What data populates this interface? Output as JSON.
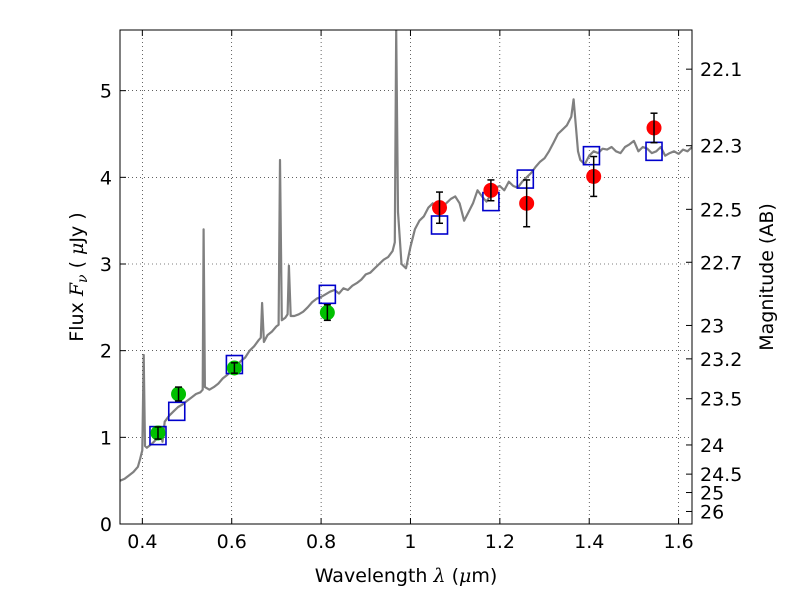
{
  "chart_data": {
    "type": "scatter",
    "xlabel": {
      "prefix": "Wavelength  ",
      "symbol": "λ",
      "suffix": " (",
      "unit_symbol": "μ",
      "unit": "m)"
    },
    "ylabel": {
      "prefix": "Flux  ",
      "symbol": "F",
      "subscript": "ν",
      "suffix": "  (  ",
      "unit_symbol": "μ",
      "unit": "Jy  )"
    },
    "y2label": "Magnitude (AB)",
    "xlim": [
      0.35,
      1.63
    ],
    "ylim": [
      0,
      5.7
    ],
    "grid": true,
    "x_ticks": [
      {
        "value": 0.4,
        "label": "0.4"
      },
      {
        "value": 0.6,
        "label": "0.6"
      },
      {
        "value": 0.8,
        "label": "0.8"
      },
      {
        "value": 1.0,
        "label": "1"
      },
      {
        "value": 1.2,
        "label": "1.2"
      },
      {
        "value": 1.4,
        "label": "1.4"
      },
      {
        "value": 1.6,
        "label": "1.6"
      }
    ],
    "y_ticks": [
      {
        "value": 0,
        "label": "0"
      },
      {
        "value": 1,
        "label": "1"
      },
      {
        "value": 2,
        "label": "2"
      },
      {
        "value": 3,
        "label": "3"
      },
      {
        "value": 4,
        "label": "4"
      },
      {
        "value": 5,
        "label": "5"
      }
    ],
    "magnitude_ticks": [
      {
        "value": 22.1,
        "label": "22.1"
      },
      {
        "value": 22.3,
        "label": "22.3"
      },
      {
        "value": 22.5,
        "label": "22.5"
      },
      {
        "value": 22.7,
        "label": "22.7"
      },
      {
        "value": 23.0,
        "label": "23"
      },
      {
        "value": 23.2,
        "label": "23.2"
      },
      {
        "value": 23.5,
        "label": "23.5"
      },
      {
        "value": 24.0,
        "label": "24"
      },
      {
        "value": 24.5,
        "label": "24.5"
      },
      {
        "value": 25.0,
        "label": "25"
      },
      {
        "value": 26.0,
        "label": "26"
      }
    ],
    "magnitude_zero_point": 23.9,
    "series": [
      {
        "name": "model-spectrum",
        "kind": "line",
        "color": "#808080",
        "points": [
          [
            0.35,
            0.5
          ],
          [
            0.36,
            0.52
          ],
          [
            0.37,
            0.56
          ],
          [
            0.38,
            0.6
          ],
          [
            0.39,
            0.66
          ],
          [
            0.395,
            0.75
          ],
          [
            0.4,
            0.85
          ],
          [
            0.403,
            1.95
          ],
          [
            0.406,
            0.9
          ],
          [
            0.41,
            0.88
          ],
          [
            0.42,
            0.92
          ],
          [
            0.43,
            0.97
          ],
          [
            0.435,
            1.0
          ],
          [
            0.44,
            1.1
          ],
          [
            0.445,
            0.95
          ],
          [
            0.45,
            1.18
          ],
          [
            0.46,
            1.25
          ],
          [
            0.47,
            1.3
          ],
          [
            0.48,
            1.35
          ],
          [
            0.49,
            1.38
          ],
          [
            0.5,
            1.42
          ],
          [
            0.51,
            1.46
          ],
          [
            0.52,
            1.5
          ],
          [
            0.53,
            1.52
          ],
          [
            0.535,
            1.55
          ],
          [
            0.537,
            3.4
          ],
          [
            0.54,
            1.58
          ],
          [
            0.55,
            1.55
          ],
          [
            0.56,
            1.58
          ],
          [
            0.57,
            1.62
          ],
          [
            0.58,
            1.68
          ],
          [
            0.59,
            1.72
          ],
          [
            0.6,
            1.78
          ],
          [
            0.61,
            1.82
          ],
          [
            0.62,
            1.88
          ],
          [
            0.63,
            1.92
          ],
          [
            0.64,
            2.0
          ],
          [
            0.65,
            2.05
          ],
          [
            0.66,
            2.12
          ],
          [
            0.665,
            2.15
          ],
          [
            0.668,
            2.55
          ],
          [
            0.672,
            2.1
          ],
          [
            0.68,
            2.18
          ],
          [
            0.69,
            2.22
          ],
          [
            0.7,
            2.28
          ],
          [
            0.705,
            2.3
          ],
          [
            0.708,
            4.2
          ],
          [
            0.712,
            2.35
          ],
          [
            0.72,
            2.38
          ],
          [
            0.725,
            2.42
          ],
          [
            0.728,
            2.98
          ],
          [
            0.732,
            2.4
          ],
          [
            0.74,
            2.4
          ],
          [
            0.75,
            2.42
          ],
          [
            0.76,
            2.45
          ],
          [
            0.77,
            2.5
          ],
          [
            0.78,
            2.56
          ],
          [
            0.79,
            2.6
          ],
          [
            0.8,
            2.62
          ],
          [
            0.81,
            2.65
          ],
          [
            0.82,
            2.68
          ],
          [
            0.83,
            2.7
          ],
          [
            0.84,
            2.66
          ],
          [
            0.85,
            2.72
          ],
          [
            0.86,
            2.7
          ],
          [
            0.87,
            2.75
          ],
          [
            0.88,
            2.78
          ],
          [
            0.89,
            2.82
          ],
          [
            0.9,
            2.88
          ],
          [
            0.91,
            2.9
          ],
          [
            0.92,
            2.95
          ],
          [
            0.93,
            3.0
          ],
          [
            0.94,
            3.05
          ],
          [
            0.95,
            3.08
          ],
          [
            0.96,
            3.15
          ],
          [
            0.965,
            3.25
          ],
          [
            0.968,
            5.7
          ],
          [
            0.972,
            3.6
          ],
          [
            0.98,
            3.0
          ],
          [
            0.99,
            2.95
          ],
          [
            1.0,
            3.2
          ],
          [
            1.01,
            3.4
          ],
          [
            1.02,
            3.5
          ],
          [
            1.03,
            3.55
          ],
          [
            1.04,
            3.65
          ],
          [
            1.05,
            3.7
          ],
          [
            1.06,
            3.62
          ],
          [
            1.07,
            3.65
          ],
          [
            1.08,
            3.7
          ],
          [
            1.09,
            3.75
          ],
          [
            1.1,
            3.78
          ],
          [
            1.11,
            3.7
          ],
          [
            1.12,
            3.5
          ],
          [
            1.13,
            3.6
          ],
          [
            1.14,
            3.7
          ],
          [
            1.15,
            3.85
          ],
          [
            1.16,
            3.78
          ],
          [
            1.17,
            3.72
          ],
          [
            1.18,
            3.8
          ],
          [
            1.19,
            3.88
          ],
          [
            1.2,
            3.9
          ],
          [
            1.21,
            3.85
          ],
          [
            1.22,
            3.95
          ],
          [
            1.23,
            3.9
          ],
          [
            1.24,
            3.88
          ],
          [
            1.25,
            3.95
          ],
          [
            1.26,
            4.0
          ],
          [
            1.27,
            4.05
          ],
          [
            1.28,
            4.12
          ],
          [
            1.29,
            4.18
          ],
          [
            1.3,
            4.22
          ],
          [
            1.31,
            4.3
          ],
          [
            1.32,
            4.4
          ],
          [
            1.33,
            4.5
          ],
          [
            1.34,
            4.55
          ],
          [
            1.35,
            4.6
          ],
          [
            1.36,
            4.7
          ],
          [
            1.365,
            4.9
          ],
          [
            1.37,
            4.6
          ],
          [
            1.375,
            4.3
          ],
          [
            1.38,
            4.2
          ],
          [
            1.39,
            4.15
          ],
          [
            1.4,
            4.25
          ],
          [
            1.41,
            4.3
          ],
          [
            1.42,
            4.28
          ],
          [
            1.43,
            4.33
          ],
          [
            1.44,
            4.32
          ],
          [
            1.45,
            4.35
          ],
          [
            1.46,
            4.3
          ],
          [
            1.47,
            4.28
          ],
          [
            1.48,
            4.35
          ],
          [
            1.49,
            4.38
          ],
          [
            1.5,
            4.42
          ],
          [
            1.51,
            4.3
          ],
          [
            1.52,
            4.35
          ],
          [
            1.53,
            4.33
          ],
          [
            1.54,
            4.28
          ],
          [
            1.55,
            4.3
          ],
          [
            1.56,
            4.35
          ],
          [
            1.57,
            4.25
          ],
          [
            1.58,
            4.28
          ],
          [
            1.59,
            4.3
          ],
          [
            1.6,
            4.27
          ],
          [
            1.61,
            4.32
          ],
          [
            1.62,
            4.3
          ],
          [
            1.63,
            4.35
          ]
        ]
      },
      {
        "name": "model-photometry",
        "kind": "open-square",
        "color": "#0000cc",
        "points": [
          [
            0.435,
            1.02
          ],
          [
            0.477,
            1.3
          ],
          [
            0.606,
            1.84
          ],
          [
            0.814,
            2.65
          ],
          [
            1.065,
            3.45
          ],
          [
            1.18,
            3.72
          ],
          [
            1.257,
            3.98
          ],
          [
            1.405,
            4.25
          ],
          [
            1.545,
            4.3
          ]
        ]
      },
      {
        "name": "optical-photometry",
        "kind": "filled-circle",
        "color": "#00c000",
        "points": [
          {
            "x": 0.435,
            "y": 1.05,
            "err": 0.07
          },
          {
            "x": 0.481,
            "y": 1.5,
            "err": 0.08
          },
          {
            "x": 0.606,
            "y": 1.8,
            "err": 0.06
          },
          {
            "x": 0.814,
            "y": 2.44,
            "err": 0.09
          }
        ]
      },
      {
        "name": "nir-photometry",
        "kind": "filled-circle",
        "color": "#ff0000",
        "points": [
          {
            "x": 1.065,
            "y": 3.65,
            "err": 0.18
          },
          {
            "x": 1.18,
            "y": 3.85,
            "err": 0.12
          },
          {
            "x": 1.26,
            "y": 3.7,
            "err": 0.27
          },
          {
            "x": 1.41,
            "y": 4.01,
            "err": 0.23
          },
          {
            "x": 1.545,
            "y": 4.57,
            "err": 0.17
          }
        ]
      }
    ]
  }
}
